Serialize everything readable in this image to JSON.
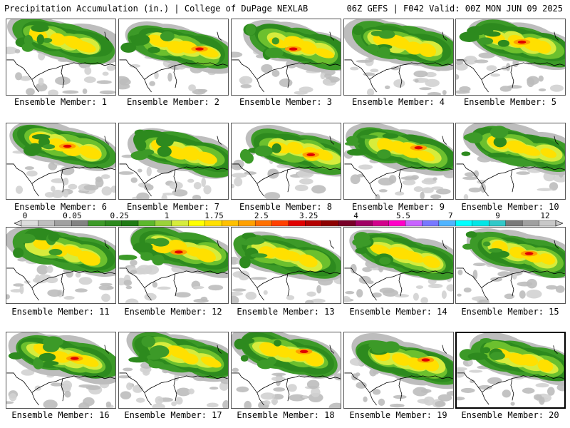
{
  "header": {
    "title_left": "Precipitation Accumulation (in.) | College of DuPage NEXLAB",
    "title_right": "06Z GEFS | F042 Valid: 00Z MON JUN 09 2025"
  },
  "colorbar": {
    "tick_labels": [
      "0",
      "0.05",
      "0.25",
      "1",
      "1.75",
      "2.5",
      "3.25",
      "4",
      "5.5",
      "7",
      "9",
      "12"
    ],
    "colors": [
      "#dcdcdc",
      "#bebebe",
      "#a0a0a0",
      "#828282",
      "#3c9a28",
      "#2d8a1e",
      "#1e7a14",
      "#5cb82c",
      "#9ad23a",
      "#d6ec3c",
      "#ffff00",
      "#ffe000",
      "#ffc000",
      "#ffa000",
      "#ff7000",
      "#ff4000",
      "#e00000",
      "#b40000",
      "#8c0000",
      "#780028",
      "#a00064",
      "#d2008c",
      "#ff00c8",
      "#c864ff",
      "#7878ff",
      "#50b4ff",
      "#00ffff",
      "#00e6e6",
      "#32c8c8",
      "#7a7a7a",
      "#a0a0a0",
      "#c8c8c8"
    ]
  },
  "members": [
    {
      "label": "Ensemble Member: 1",
      "selected": false
    },
    {
      "label": "Ensemble Member: 2",
      "selected": false
    },
    {
      "label": "Ensemble Member: 3",
      "selected": false
    },
    {
      "label": "Ensemble Member: 4",
      "selected": false
    },
    {
      "label": "Ensemble Member: 5",
      "selected": false
    },
    {
      "label": "Ensemble Member: 6",
      "selected": false
    },
    {
      "label": "Ensemble Member: 7",
      "selected": false
    },
    {
      "label": "Ensemble Member: 8",
      "selected": false
    },
    {
      "label": "Ensemble Member: 9",
      "selected": false
    },
    {
      "label": "Ensemble Member: 10",
      "selected": false
    },
    {
      "label": "Ensemble Member: 11",
      "selected": false
    },
    {
      "label": "Ensemble Member: 12",
      "selected": false
    },
    {
      "label": "Ensemble Member: 13",
      "selected": false
    },
    {
      "label": "Ensemble Member: 14",
      "selected": false
    },
    {
      "label": "Ensemble Member: 15",
      "selected": false
    },
    {
      "label": "Ensemble Member: 16",
      "selected": false
    },
    {
      "label": "Ensemble Member: 17",
      "selected": false
    },
    {
      "label": "Ensemble Member: 18",
      "selected": false
    },
    {
      "label": "Ensemble Member: 19",
      "selected": false
    },
    {
      "label": "Ensemble Member: 20",
      "selected": true
    }
  ]
}
